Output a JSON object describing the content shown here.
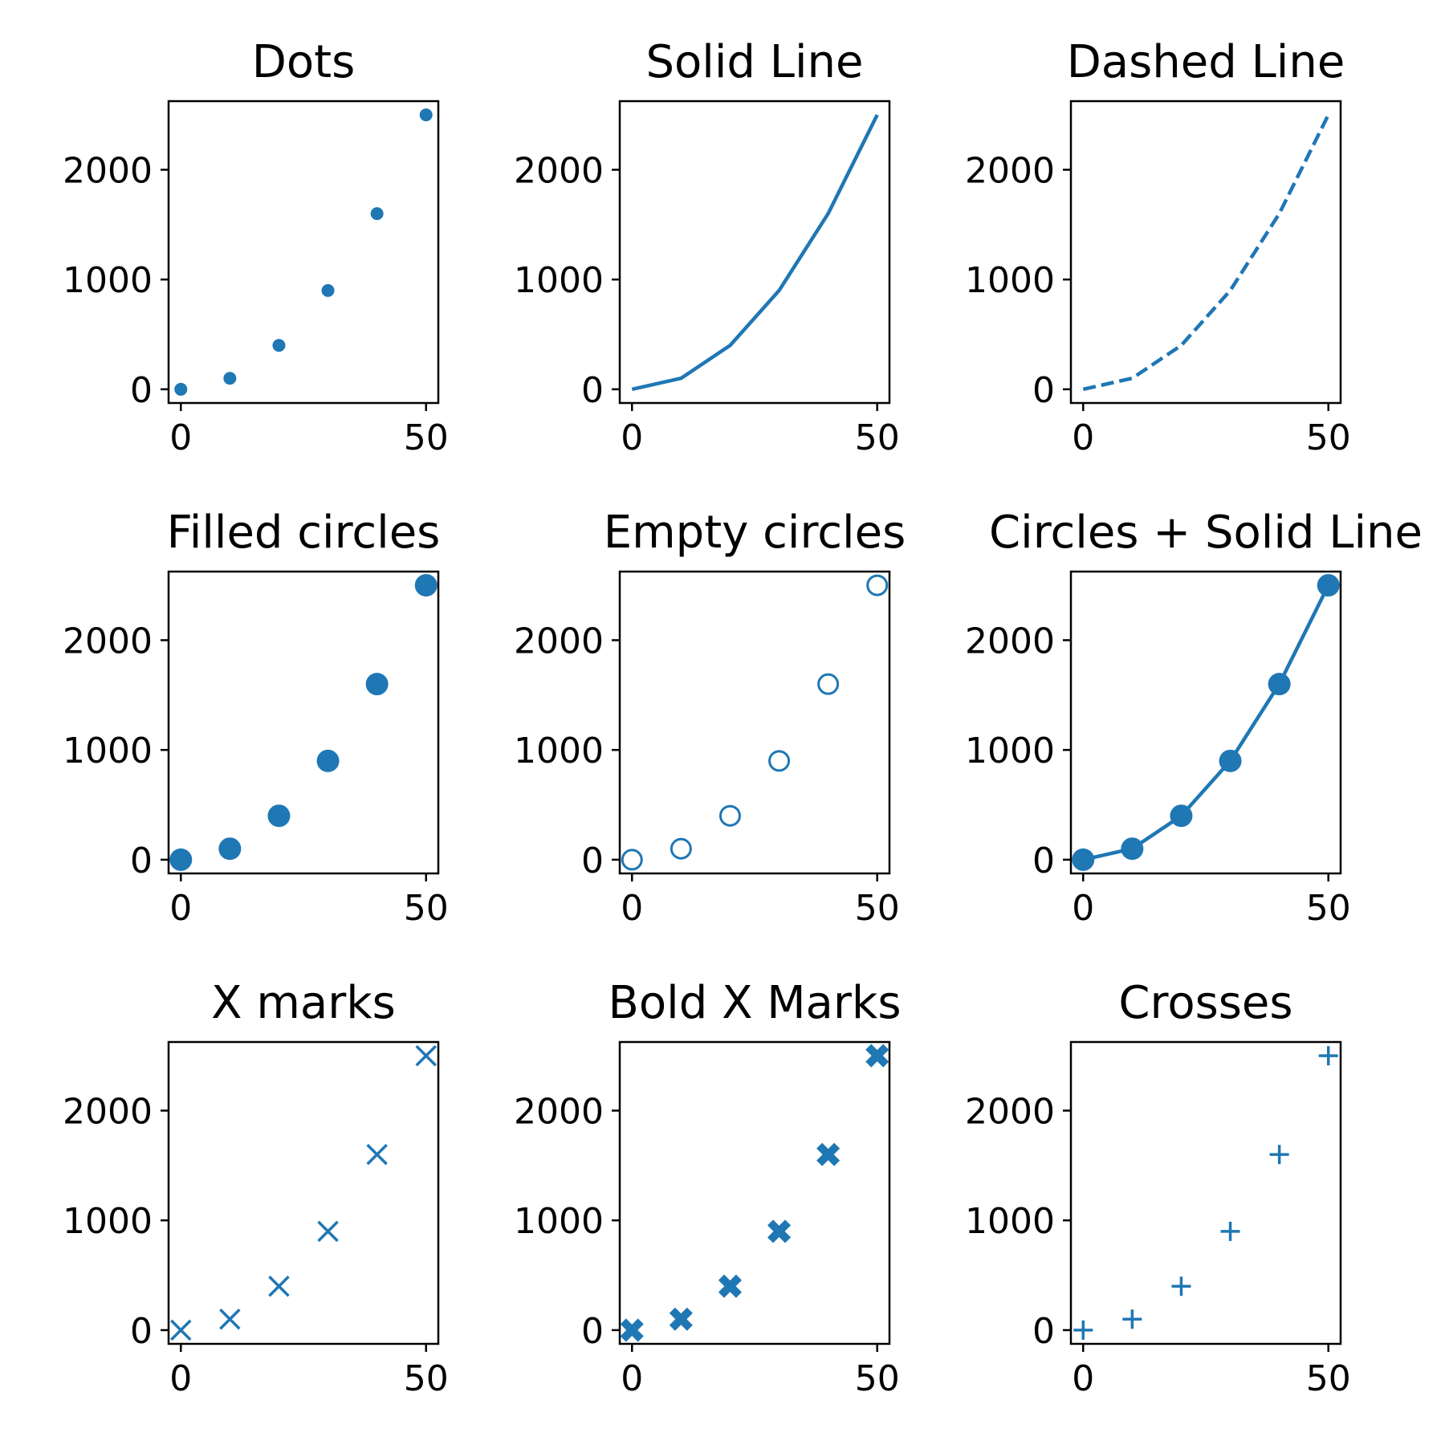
{
  "colors": {
    "series": "#1f77b4",
    "axes": "#000000",
    "background": "#ffffff"
  },
  "chart_data": [
    {
      "type": "scatter",
      "title": "Dots",
      "marker": "dot",
      "line": "none",
      "x": [
        0,
        10,
        20,
        30,
        40,
        50
      ],
      "y": [
        0,
        100,
        400,
        900,
        1600,
        2500
      ],
      "xticks": [
        0,
        50
      ],
      "yticks": [
        0,
        1000,
        2000
      ],
      "xlim": [
        -2.5,
        52.5
      ],
      "ylim": [
        -125,
        2625
      ]
    },
    {
      "type": "line",
      "title": "Solid Line",
      "marker": "none",
      "line": "solid",
      "x": [
        0,
        10,
        20,
        30,
        40,
        50
      ],
      "y": [
        0,
        100,
        400,
        900,
        1600,
        2500
      ],
      "xticks": [
        0,
        50
      ],
      "yticks": [
        0,
        1000,
        2000
      ],
      "xlim": [
        -2.5,
        52.5
      ],
      "ylim": [
        -125,
        2625
      ]
    },
    {
      "type": "line",
      "title": "Dashed Line",
      "marker": "none",
      "line": "dashed",
      "x": [
        0,
        10,
        20,
        30,
        40,
        50
      ],
      "y": [
        0,
        100,
        400,
        900,
        1600,
        2500
      ],
      "xticks": [
        0,
        50
      ],
      "yticks": [
        0,
        1000,
        2000
      ],
      "xlim": [
        -2.5,
        52.5
      ],
      "ylim": [
        -125,
        2625
      ]
    },
    {
      "type": "scatter",
      "title": "Filled circles",
      "marker": "filled-circle",
      "line": "none",
      "x": [
        0,
        10,
        20,
        30,
        40,
        50
      ],
      "y": [
        0,
        100,
        400,
        900,
        1600,
        2500
      ],
      "xticks": [
        0,
        50
      ],
      "yticks": [
        0,
        1000,
        2000
      ],
      "xlim": [
        -2.5,
        52.5
      ],
      "ylim": [
        -125,
        2625
      ]
    },
    {
      "type": "scatter",
      "title": "Empty circles",
      "marker": "empty-circle",
      "line": "none",
      "x": [
        0,
        10,
        20,
        30,
        40,
        50
      ],
      "y": [
        0,
        100,
        400,
        900,
        1600,
        2500
      ],
      "xticks": [
        0,
        50
      ],
      "yticks": [
        0,
        1000,
        2000
      ],
      "xlim": [
        -2.5,
        52.5
      ],
      "ylim": [
        -125,
        2625
      ]
    },
    {
      "type": "line",
      "title": "Circles + Solid Line",
      "marker": "filled-circle",
      "line": "solid",
      "x": [
        0,
        10,
        20,
        30,
        40,
        50
      ],
      "y": [
        0,
        100,
        400,
        900,
        1600,
        2500
      ],
      "xticks": [
        0,
        50
      ],
      "yticks": [
        0,
        1000,
        2000
      ],
      "xlim": [
        -2.5,
        52.5
      ],
      "ylim": [
        -125,
        2625
      ]
    },
    {
      "type": "scatter",
      "title": "X marks",
      "marker": "x",
      "line": "none",
      "x": [
        0,
        10,
        20,
        30,
        40,
        50
      ],
      "y": [
        0,
        100,
        400,
        900,
        1600,
        2500
      ],
      "xticks": [
        0,
        50
      ],
      "yticks": [
        0,
        1000,
        2000
      ],
      "xlim": [
        -2.5,
        52.5
      ],
      "ylim": [
        -125,
        2625
      ]
    },
    {
      "type": "scatter",
      "title": "Bold X Marks",
      "marker": "bold-x",
      "line": "none",
      "x": [
        0,
        10,
        20,
        30,
        40,
        50
      ],
      "y": [
        0,
        100,
        400,
        900,
        1600,
        2500
      ],
      "xticks": [
        0,
        50
      ],
      "yticks": [
        0,
        1000,
        2000
      ],
      "xlim": [
        -2.5,
        52.5
      ],
      "ylim": [
        -125,
        2625
      ]
    },
    {
      "type": "scatter",
      "title": "Crosses",
      "marker": "plus",
      "line": "none",
      "x": [
        0,
        10,
        20,
        30,
        40,
        50
      ],
      "y": [
        0,
        100,
        400,
        900,
        1600,
        2500
      ],
      "xticks": [
        0,
        50
      ],
      "yticks": [
        0,
        1000,
        2000
      ],
      "xlim": [
        -2.5,
        52.5
      ],
      "ylim": [
        -125,
        2625
      ]
    }
  ]
}
